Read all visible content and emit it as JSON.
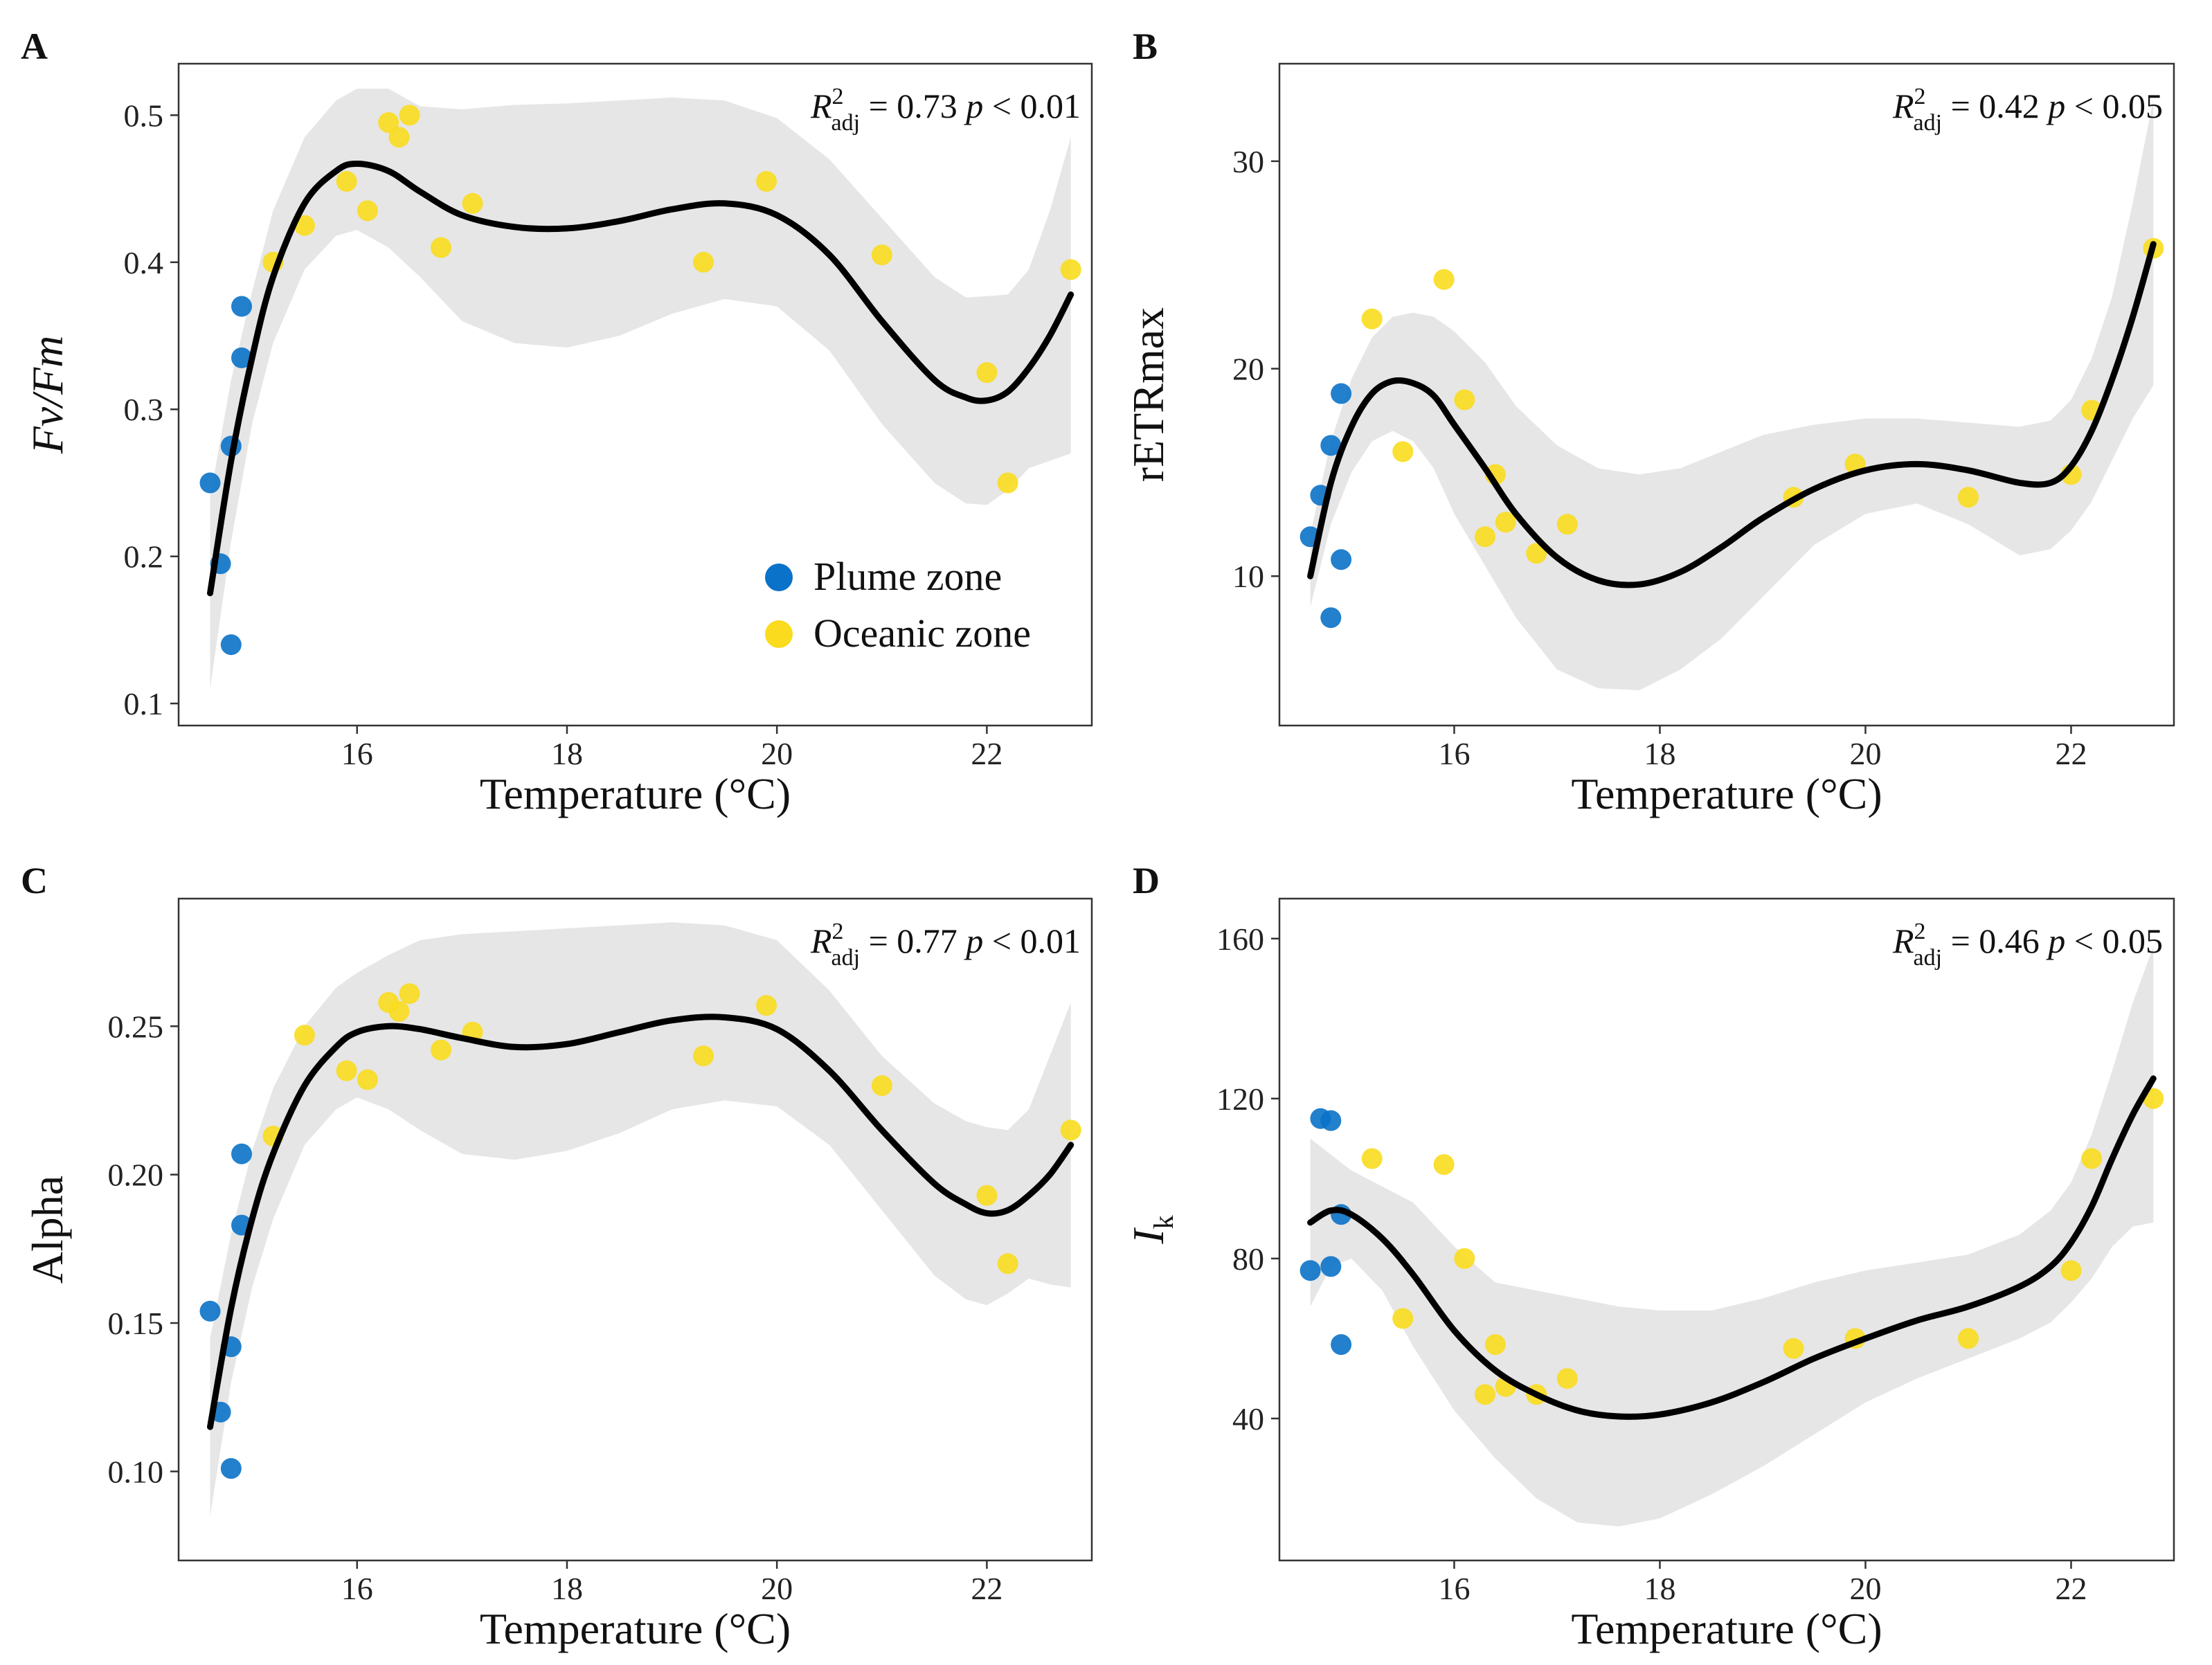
{
  "colors": {
    "plume": "#0a72c8",
    "oceanic": "#fadb1e",
    "fit_line": "#000000",
    "ci_band": "#e6e6e6",
    "frame": "#333333"
  },
  "legend": {
    "plume_label": "Plume zone",
    "oceanic_label": "Oceanic zone"
  },
  "chart_data": [
    {
      "type": "scatter",
      "panel": "A",
      "xlabel": "Temperature (°C)",
      "ylabel": "Fv/Fm",
      "ylabel_style": "italic",
      "xlim": [
        14.3,
        23.0
      ],
      "ylim": [
        0.085,
        0.535
      ],
      "xticks": [
        16,
        18,
        20,
        22
      ],
      "xtick_labels": [
        "16",
        "18",
        "20",
        "22"
      ],
      "yticks": [
        0.1,
        0.2,
        0.3,
        0.4,
        0.5
      ],
      "ytick_labels": [
        "0.1",
        "0.2",
        "0.3",
        "0.4",
        "0.5"
      ],
      "stat": {
        "r2_sym": "R",
        "r2_sup": "2",
        "r2_sub": "adj",
        "r2_value": "= 0.73",
        "p_sym": "p",
        "p_value": "< 0.01"
      },
      "legend_position": "bottom-right",
      "series": [
        {
          "name": "Plume zone",
          "x": [
            14.6,
            14.7,
            14.8,
            14.8,
            14.9,
            14.9
          ],
          "y": [
            0.25,
            0.195,
            0.275,
            0.14,
            0.335,
            0.37
          ]
        },
        {
          "name": "Oceanic zone",
          "x": [
            15.2,
            15.5,
            15.9,
            16.1,
            16.3,
            16.4,
            16.5,
            16.8,
            17.1,
            19.3,
            19.9,
            21.0,
            22.0,
            22.2,
            22.8
          ],
          "y": [
            0.4,
            0.425,
            0.455,
            0.435,
            0.495,
            0.485,
            0.5,
            0.41,
            0.44,
            0.4,
            0.455,
            0.405,
            0.325,
            0.25,
            0.395
          ]
        }
      ],
      "fit": {
        "x": [
          14.6,
          14.8,
          15.0,
          15.2,
          15.5,
          15.8,
          16.0,
          16.3,
          16.6,
          17.0,
          17.5,
          18.0,
          18.5,
          19.0,
          19.5,
          20.0,
          20.5,
          21.0,
          21.5,
          21.8,
          22.0,
          22.2,
          22.4,
          22.6,
          22.8
        ],
        "y": [
          0.175,
          0.265,
          0.335,
          0.39,
          0.44,
          0.462,
          0.467,
          0.462,
          0.448,
          0.432,
          0.424,
          0.423,
          0.428,
          0.436,
          0.44,
          0.432,
          0.405,
          0.36,
          0.32,
          0.308,
          0.306,
          0.312,
          0.328,
          0.35,
          0.378
        ],
        "ci_lower": [
          0.11,
          0.21,
          0.29,
          0.345,
          0.395,
          0.418,
          0.422,
          0.41,
          0.39,
          0.36,
          0.345,
          0.342,
          0.35,
          0.365,
          0.375,
          0.37,
          0.34,
          0.29,
          0.25,
          0.236,
          0.235,
          0.245,
          0.26,
          0.265,
          0.27
        ],
        "ci_upper": [
          0.24,
          0.32,
          0.38,
          0.435,
          0.485,
          0.51,
          0.518,
          0.518,
          0.506,
          0.504,
          0.507,
          0.508,
          0.51,
          0.512,
          0.51,
          0.498,
          0.47,
          0.43,
          0.39,
          0.376,
          0.377,
          0.378,
          0.395,
          0.435,
          0.485
        ]
      }
    },
    {
      "type": "scatter",
      "panel": "B",
      "xlabel": "Temperature (°C)",
      "ylabel": "rETRmax",
      "ylabel_style": "normal",
      "xlim": [
        14.3,
        23.0
      ],
      "ylim": [
        2.8,
        34.7
      ],
      "xticks": [
        16,
        18,
        20,
        22
      ],
      "xtick_labels": [
        "16",
        "18",
        "20",
        "22"
      ],
      "yticks": [
        10,
        20,
        30
      ],
      "ytick_labels": [
        "10",
        "20",
        "30"
      ],
      "stat": {
        "r2_sym": "R",
        "r2_sup": "2",
        "r2_sub": "adj",
        "r2_value": "= 0.42",
        "p_sym": "p",
        "p_value": "< 0.05"
      },
      "series": [
        {
          "name": "Plume zone",
          "x": [
            14.6,
            14.7,
            14.8,
            14.8,
            14.9,
            14.9
          ],
          "y": [
            11.9,
            13.9,
            16.3,
            8.0,
            18.8,
            10.8
          ]
        },
        {
          "name": "Oceanic zone",
          "x": [
            15.2,
            15.5,
            15.9,
            16.1,
            16.3,
            16.4,
            16.5,
            16.8,
            17.1,
            19.3,
            19.9,
            21.0,
            22.0,
            22.2,
            22.8
          ],
          "y": [
            22.4,
            16.0,
            24.3,
            18.5,
            11.9,
            14.9,
            12.6,
            11.1,
            12.5,
            13.8,
            15.4,
            13.8,
            14.9,
            18.0,
            25.8
          ]
        }
      ],
      "fit": {
        "x": [
          14.6,
          14.8,
          15.0,
          15.2,
          15.4,
          15.6,
          15.8,
          16.0,
          16.3,
          16.6,
          17.0,
          17.4,
          17.8,
          18.2,
          18.6,
          19.0,
          19.5,
          20.0,
          20.5,
          21.0,
          21.5,
          21.8,
          22.0,
          22.2,
          22.4,
          22.6,
          22.8
        ],
        "y": [
          10.0,
          14.5,
          17.2,
          18.8,
          19.4,
          19.3,
          18.7,
          17.3,
          15.2,
          13.0,
          10.9,
          9.8,
          9.6,
          10.2,
          11.4,
          12.8,
          14.2,
          15.1,
          15.4,
          15.1,
          14.5,
          14.5,
          15.3,
          17.0,
          19.5,
          22.5,
          26.0
        ],
        "ci_lower": [
          8.5,
          12.5,
          15.0,
          16.5,
          17.0,
          16.5,
          15.2,
          13.0,
          10.5,
          8.0,
          5.5,
          4.6,
          4.5,
          5.5,
          7.0,
          9.0,
          11.5,
          13.0,
          13.5,
          12.5,
          11.0,
          11.3,
          12.2,
          13.6,
          15.6,
          17.6,
          19.2
        ],
        "ci_upper": [
          12.0,
          16.5,
          19.5,
          21.5,
          22.5,
          22.7,
          22.5,
          21.8,
          20.3,
          18.2,
          16.3,
          15.2,
          14.9,
          15.2,
          16.0,
          16.8,
          17.3,
          17.6,
          17.6,
          17.4,
          17.2,
          17.5,
          18.5,
          20.5,
          23.5,
          28.0,
          33.0
        ]
      }
    },
    {
      "type": "scatter",
      "panel": "C",
      "xlabel": "Temperature (°C)",
      "ylabel": "Alpha",
      "ylabel_style": "normal",
      "xlim": [
        14.3,
        23.0
      ],
      "ylim": [
        0.07,
        0.293
      ],
      "xticks": [
        16,
        18,
        20,
        22
      ],
      "xtick_labels": [
        "16",
        "18",
        "20",
        "22"
      ],
      "yticks": [
        0.1,
        0.15,
        0.2,
        0.25
      ],
      "ytick_labels": [
        "0.10",
        "0.15",
        "0.20",
        "0.25"
      ],
      "stat": {
        "r2_sym": "R",
        "r2_sup": "2",
        "r2_sub": "adj",
        "r2_value": "= 0.77",
        "p_sym": "p",
        "p_value": "< 0.01"
      },
      "series": [
        {
          "name": "Plume zone",
          "x": [
            14.6,
            14.7,
            14.8,
            14.8,
            14.9,
            14.9
          ],
          "y": [
            0.154,
            0.12,
            0.142,
            0.101,
            0.183,
            0.207
          ]
        },
        {
          "name": "Oceanic zone",
          "x": [
            15.2,
            15.5,
            15.9,
            16.1,
            16.3,
            16.4,
            16.5,
            16.8,
            17.1,
            19.3,
            19.9,
            21.0,
            22.0,
            22.2,
            22.8
          ],
          "y": [
            0.213,
            0.247,
            0.235,
            0.232,
            0.258,
            0.255,
            0.261,
            0.242,
            0.248,
            0.24,
            0.257,
            0.23,
            0.193,
            0.17,
            0.215
          ]
        }
      ],
      "fit": {
        "x": [
          14.6,
          14.8,
          15.0,
          15.2,
          15.5,
          15.8,
          16.0,
          16.3,
          16.6,
          17.0,
          17.5,
          18.0,
          18.5,
          19.0,
          19.5,
          20.0,
          20.5,
          21.0,
          21.5,
          21.8,
          22.0,
          22.2,
          22.4,
          22.6,
          22.8
        ],
        "y": [
          0.115,
          0.155,
          0.185,
          0.207,
          0.23,
          0.243,
          0.248,
          0.25,
          0.249,
          0.246,
          0.243,
          0.244,
          0.248,
          0.252,
          0.253,
          0.249,
          0.235,
          0.215,
          0.197,
          0.19,
          0.187,
          0.188,
          0.193,
          0.2,
          0.21
        ],
        "ci_lower": [
          0.085,
          0.13,
          0.162,
          0.185,
          0.21,
          0.222,
          0.226,
          0.222,
          0.215,
          0.207,
          0.205,
          0.208,
          0.214,
          0.222,
          0.225,
          0.223,
          0.21,
          0.188,
          0.166,
          0.158,
          0.156,
          0.16,
          0.165,
          0.163,
          0.162
        ],
        "ci_upper": [
          0.145,
          0.18,
          0.208,
          0.229,
          0.25,
          0.263,
          0.268,
          0.274,
          0.279,
          0.281,
          0.282,
          0.283,
          0.284,
          0.285,
          0.284,
          0.279,
          0.262,
          0.24,
          0.224,
          0.218,
          0.216,
          0.215,
          0.222,
          0.24,
          0.258
        ]
      }
    },
    {
      "type": "scatter",
      "panel": "D",
      "xlabel": "Temperature (°C)",
      "ylabel_main": "I",
      "ylabel_sub": "k",
      "ylabel_style": "italic",
      "xlim": [
        14.3,
        23.0
      ],
      "ylim": [
        4.5,
        170
      ],
      "xticks": [
        16,
        18,
        20,
        22
      ],
      "xtick_labels": [
        "16",
        "18",
        "20",
        "22"
      ],
      "yticks": [
        40,
        80,
        120,
        160
      ],
      "ytick_labels": [
        "40",
        "80",
        "120",
        "160"
      ],
      "stat": {
        "r2_sym": "R",
        "r2_sup": "2",
        "r2_sub": "adj",
        "r2_value": "= 0.46",
        "p_sym": "p",
        "p_value": "< 0.05"
      },
      "series": [
        {
          "name": "Plume zone",
          "x": [
            14.6,
            14.7,
            14.8,
            14.8,
            14.9,
            14.9
          ],
          "y": [
            77,
            115,
            114.5,
            78,
            91,
            58.5
          ]
        },
        {
          "name": "Oceanic zone",
          "x": [
            15.2,
            15.5,
            15.9,
            16.1,
            16.3,
            16.4,
            16.5,
            16.8,
            17.1,
            19.3,
            19.9,
            21.0,
            22.0,
            22.2,
            22.8
          ],
          "y": [
            105,
            65,
            103.5,
            80,
            46,
            58.5,
            48,
            46,
            50,
            57.5,
            60,
            60,
            77,
            105,
            120
          ]
        }
      ],
      "fit": {
        "x": [
          14.6,
          14.8,
          15.0,
          15.3,
          15.6,
          16.0,
          16.4,
          16.8,
          17.2,
          17.6,
          18.0,
          18.5,
          19.0,
          19.5,
          20.0,
          20.5,
          21.0,
          21.5,
          21.8,
          22.0,
          22.2,
          22.4,
          22.6,
          22.8
        ],
        "y": [
          89,
          92,
          91,
          85,
          76,
          62,
          52,
          46,
          42,
          40.5,
          41,
          44,
          49,
          55,
          60,
          64.5,
          68,
          73,
          78,
          84,
          93,
          105,
          116,
          125
        ],
        "ci_lower": [
          68,
          78,
          80,
          72,
          58,
          42,
          30,
          20,
          14,
          13,
          15,
          21,
          28,
          36,
          44,
          50,
          55,
          60,
          64,
          69,
          75,
          83,
          88,
          89
        ],
        "ci_upper": [
          110,
          106,
          102,
          98,
          94,
          83,
          74,
          72,
          70,
          68,
          67,
          67,
          70,
          74,
          77,
          79,
          81,
          86,
          92,
          99,
          111,
          127,
          144,
          158
        ]
      }
    }
  ]
}
